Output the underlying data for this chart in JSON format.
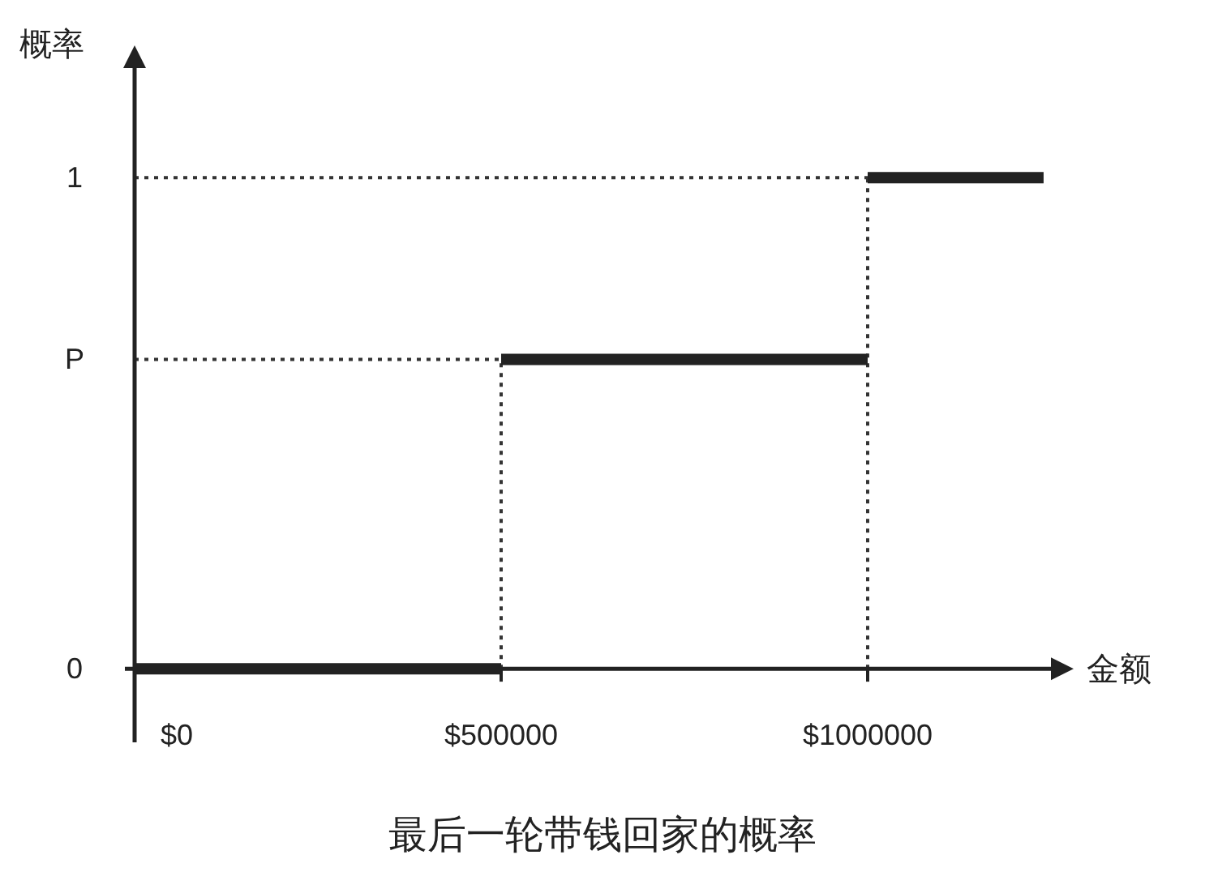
{
  "chart_data": {
    "type": "line",
    "title": "最后一轮带钱回家的概率",
    "xlabel": "金额",
    "ylabel": "概率",
    "xlim": [
      0,
      1250000
    ],
    "ylim": [
      -0.15,
      1.23
    ],
    "xticks": [
      {
        "value": 0,
        "label": "$0"
      },
      {
        "value": 500000,
        "label": "$500000"
      },
      {
        "value": 1000000,
        "label": "$1000000"
      }
    ],
    "yticks": [
      0,
      {
        "value": 0.63,
        "label": "P"
      },
      1
    ],
    "series": [
      {
        "color": "#222222",
        "x": [
          0,
          500000
        ],
        "values": [
          0,
          0
        ]
      },
      {
        "color": "#222222",
        "x": [
          500000,
          1000000
        ],
        "values": [
          0.63,
          0.63
        ]
      },
      {
        "color": "#222222",
        "x": [
          1000000,
          1240000
        ],
        "values": [
          1,
          1
        ]
      }
    ],
    "ref_lines": [
      {
        "axis": "y",
        "value": 1,
        "line_style": "dotted",
        "color": "#333333"
      },
      {
        "axis": "y",
        "value": 0.63,
        "line_style": "dotted",
        "color": "#333333"
      },
      {
        "axis": "x",
        "value": 500000,
        "line_style": "dotted",
        "color": "#333333"
      },
      {
        "axis": "x",
        "value": 1000000,
        "line_style": "dotted",
        "color": "#333333"
      }
    ]
  }
}
